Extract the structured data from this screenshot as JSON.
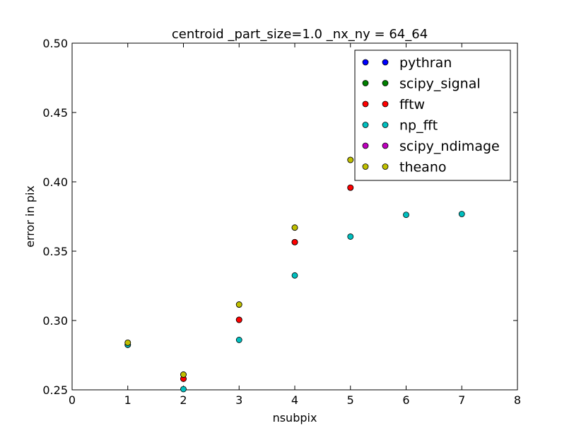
{
  "chart_data": {
    "type": "scatter",
    "title": "centroid _part_size=1.0 _nx_ny = 64_64",
    "xlabel": "nsubpix",
    "ylabel": "error in pix",
    "xlim": [
      0,
      8
    ],
    "ylim": [
      0.25,
      0.5
    ],
    "xticks": [
      0,
      1,
      2,
      3,
      4,
      5,
      6,
      7,
      8
    ],
    "xtick_labels": [
      "0",
      "1",
      "2",
      "3",
      "4",
      "5",
      "6",
      "7",
      "8"
    ],
    "yticks": [
      0.25,
      0.3,
      0.35,
      0.4,
      0.45,
      0.5
    ],
    "ytick_labels": [
      "0.25",
      "0.30",
      "0.35",
      "0.40",
      "0.45",
      "0.50"
    ],
    "grid": false,
    "legend_position": "top-right",
    "series": [
      {
        "name": "pythran",
        "color": "#0000ff",
        "x": [
          1,
          2,
          3,
          4,
          5
        ],
        "y": [
          0.2825,
          0.258,
          0.3005,
          0.3565,
          0.3958
        ]
      },
      {
        "name": "scipy_signal",
        "color": "#008000",
        "x": [
          1,
          2,
          3,
          4,
          5
        ],
        "y": [
          0.2825,
          0.258,
          0.3005,
          0.3565,
          0.3958
        ]
      },
      {
        "name": "fftw",
        "color": "#ff0000",
        "x": [
          1,
          2,
          3,
          4,
          5
        ],
        "y": [
          0.2825,
          0.258,
          0.3005,
          0.3565,
          0.3958
        ]
      },
      {
        "name": "np_fft",
        "color": "#00bfbf",
        "x": [
          1,
          2,
          3,
          4,
          5,
          6,
          7
        ],
        "y": [
          0.2825,
          0.2505,
          0.286,
          0.3325,
          0.3605,
          0.3762,
          0.3768
        ]
      },
      {
        "name": "scipy_ndimage",
        "color": "#bf00bf",
        "x": [
          1,
          2,
          3,
          4,
          5
        ],
        "y": [
          0.284,
          0.261,
          0.3115,
          0.367,
          0.4158
        ]
      },
      {
        "name": "theano",
        "color": "#bfbf00",
        "x": [
          1,
          2,
          3,
          4,
          5
        ],
        "y": [
          0.284,
          0.261,
          0.3115,
          0.367,
          0.4158
        ]
      }
    ]
  }
}
